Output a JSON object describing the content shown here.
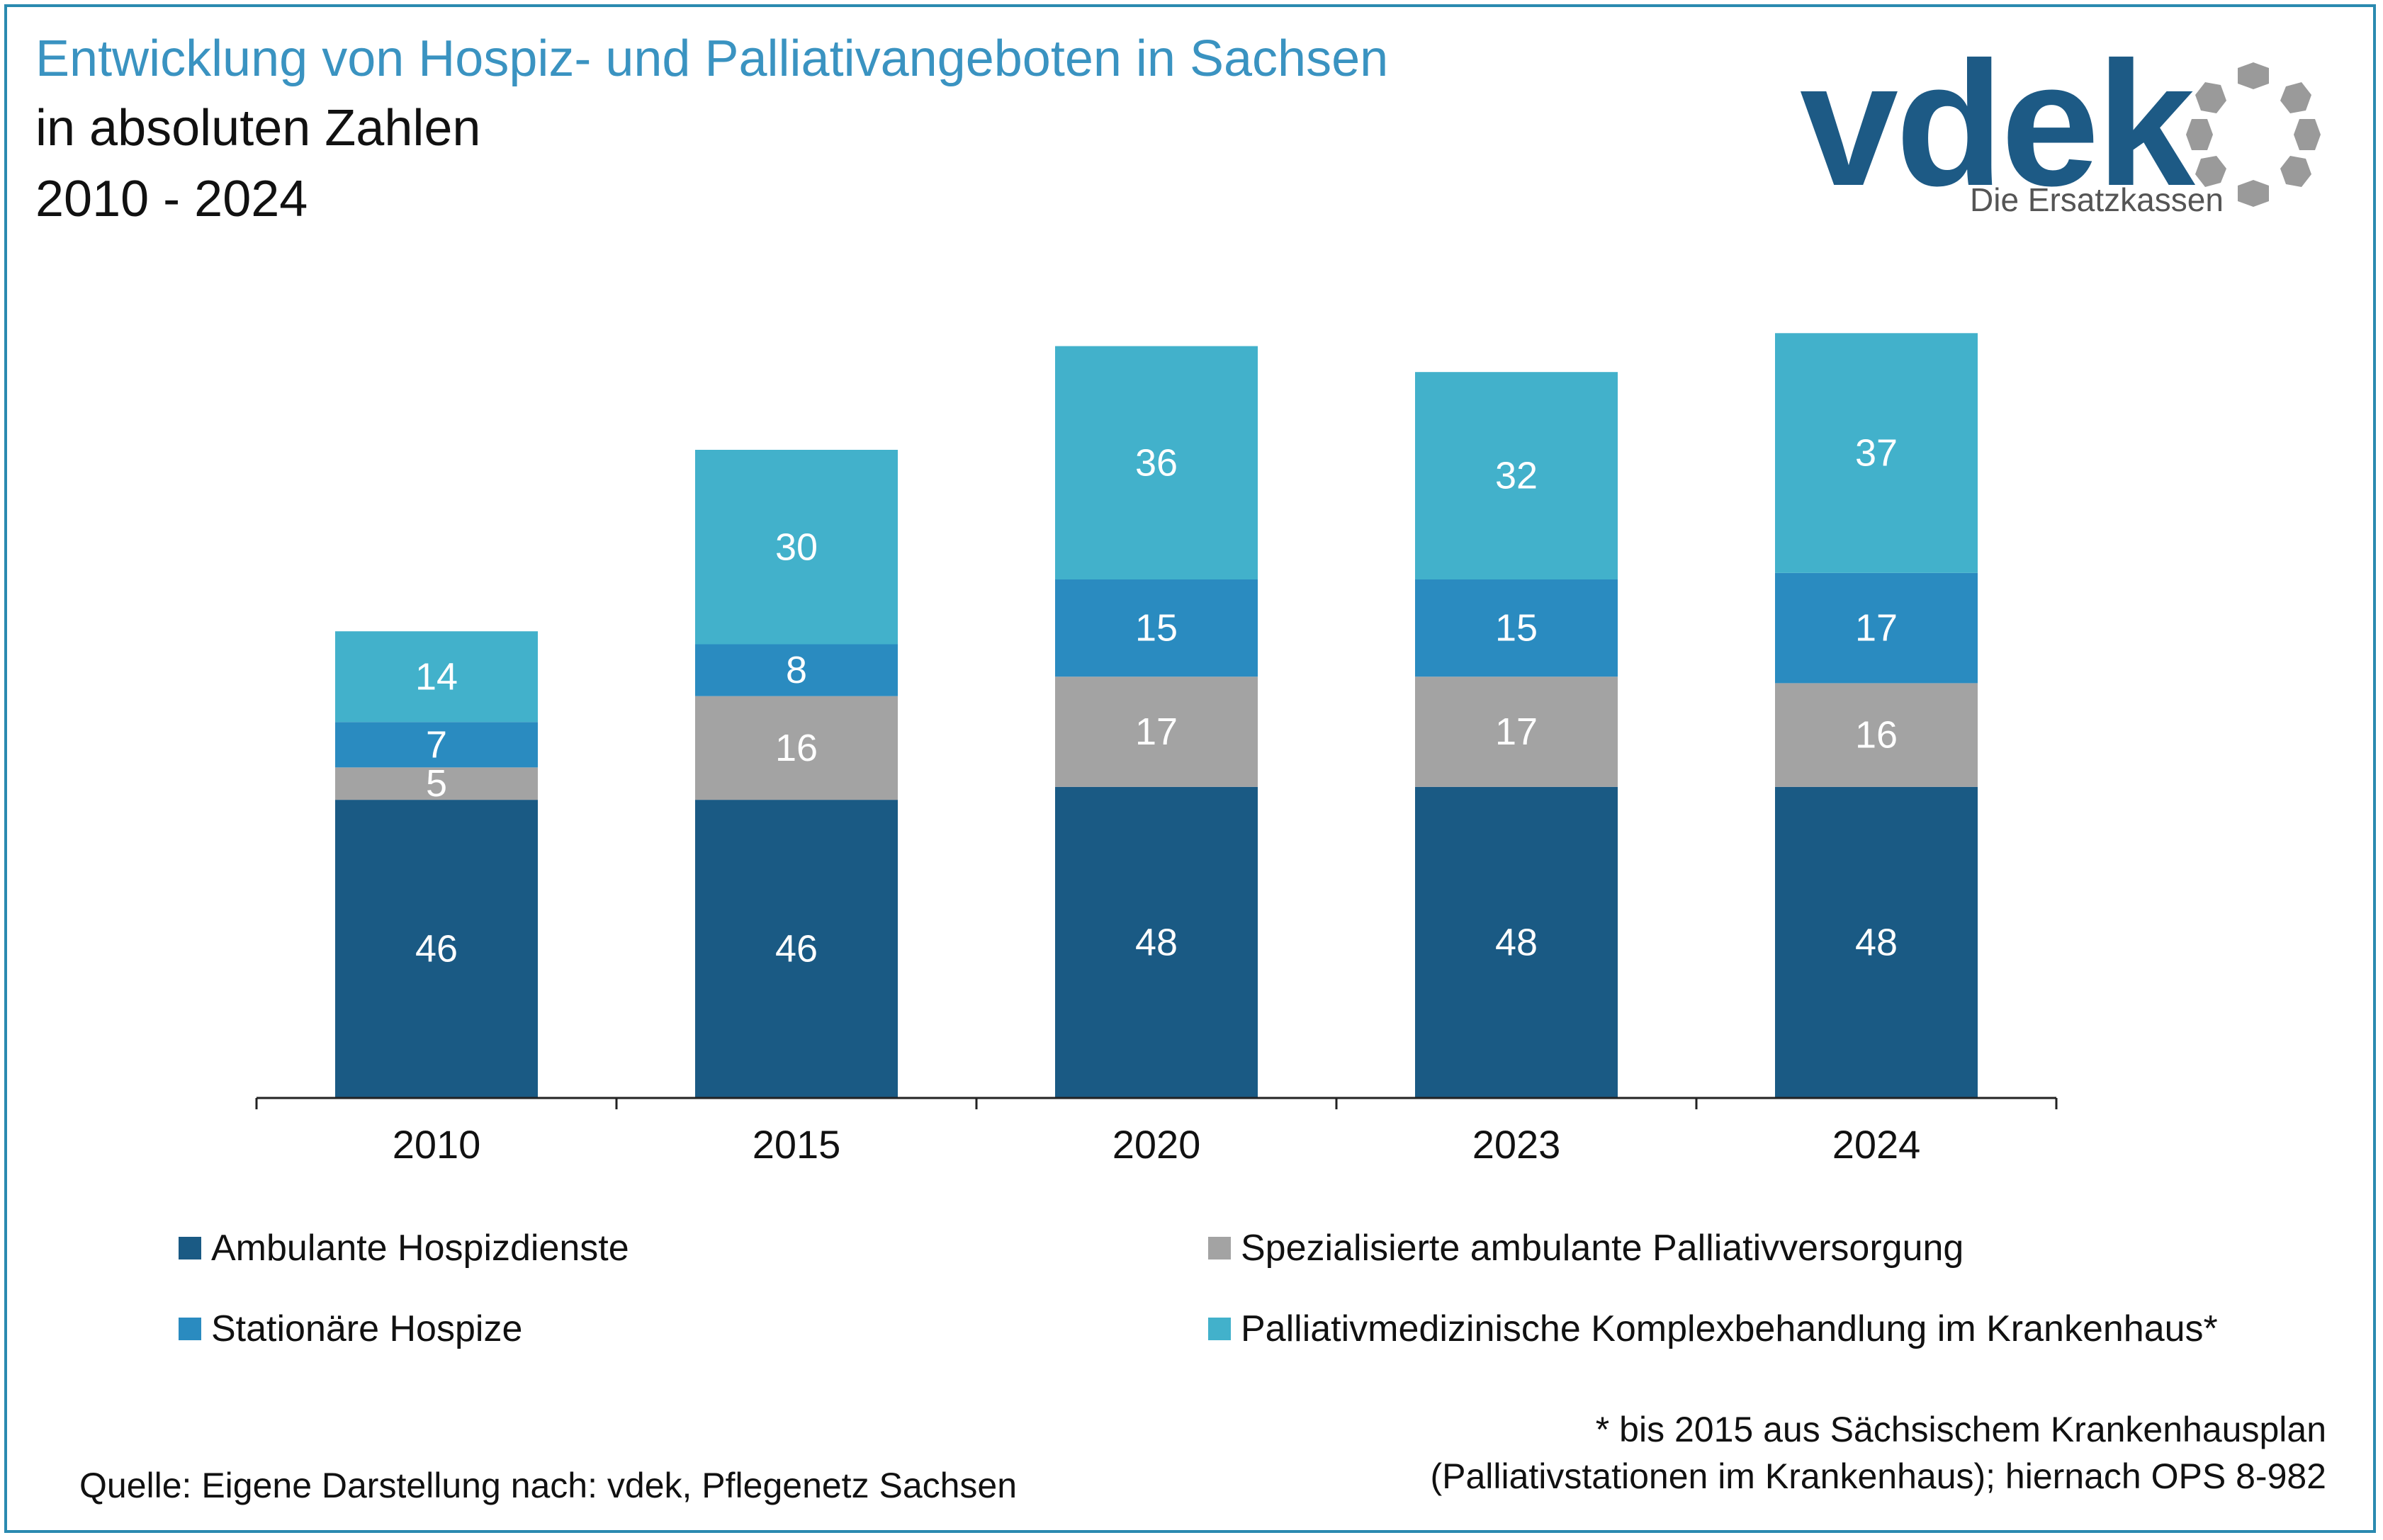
{
  "header": {
    "title": "Entwicklung von Hospiz- und Palliativangeboten in Sachsen",
    "subtitle1": "in absoluten Zahlen",
    "subtitle2": "2010 - 2024"
  },
  "logo": {
    "wordmark": "vdek",
    "tagline": "Die Ersatzkassen",
    "icon": "circle-of-dots-icon"
  },
  "colors": {
    "title": "#3a93c1",
    "frame": "#2a8ab0",
    "ambulante_hospizdienste": "#1a5a84",
    "spezialisierte_ambulante": "#a3a3a3",
    "stationaere_hospize": "#2a8bc0",
    "palliativmedizinische": "#42b1cb"
  },
  "chart_data": {
    "type": "bar",
    "stacked": true,
    "categories": [
      "2010",
      "2015",
      "2020",
      "2023",
      "2024"
    ],
    "series": [
      {
        "name": "Ambulante Hospizdienste",
        "color": "#1a5a84",
        "values": [
          46,
          46,
          48,
          48,
          48
        ]
      },
      {
        "name": "Spezialisierte ambulante Palliativversorgung",
        "color": "#a3a3a3",
        "values": [
          5,
          16,
          17,
          17,
          16
        ]
      },
      {
        "name": "Stationäre Hospize",
        "color": "#2a8bc0",
        "values": [
          7,
          8,
          15,
          15,
          17
        ]
      },
      {
        "name": "Palliativmedizinische Komplexbehandlung im Krankenhaus*",
        "color": "#42b1cb",
        "values": [
          14,
          30,
          36,
          32,
          37
        ]
      }
    ],
    "xlabel": "",
    "ylabel": "",
    "legend_position": "bottom",
    "grid": false
  },
  "legend": [
    {
      "label": "Ambulante Hospizdienste",
      "color": "#1a5a84"
    },
    {
      "label": "Spezialisierte ambulante Palliativversorgung",
      "color": "#a3a3a3"
    },
    {
      "label": "Stationäre Hospize",
      "color": "#2a8bc0"
    },
    {
      "label": "Palliativmedizinische Komplexbehandlung im Krankenhaus*",
      "color": "#42b1cb"
    }
  ],
  "footnote": {
    "line1": "* bis 2015 aus Sächsischem Krankenhausplan",
    "line2": "(Palliativstationen im Krankenhaus); hiernach OPS 8-982"
  },
  "source": "Quelle: Eigene Darstellung nach: vdek, Pflegenetz Sachsen"
}
